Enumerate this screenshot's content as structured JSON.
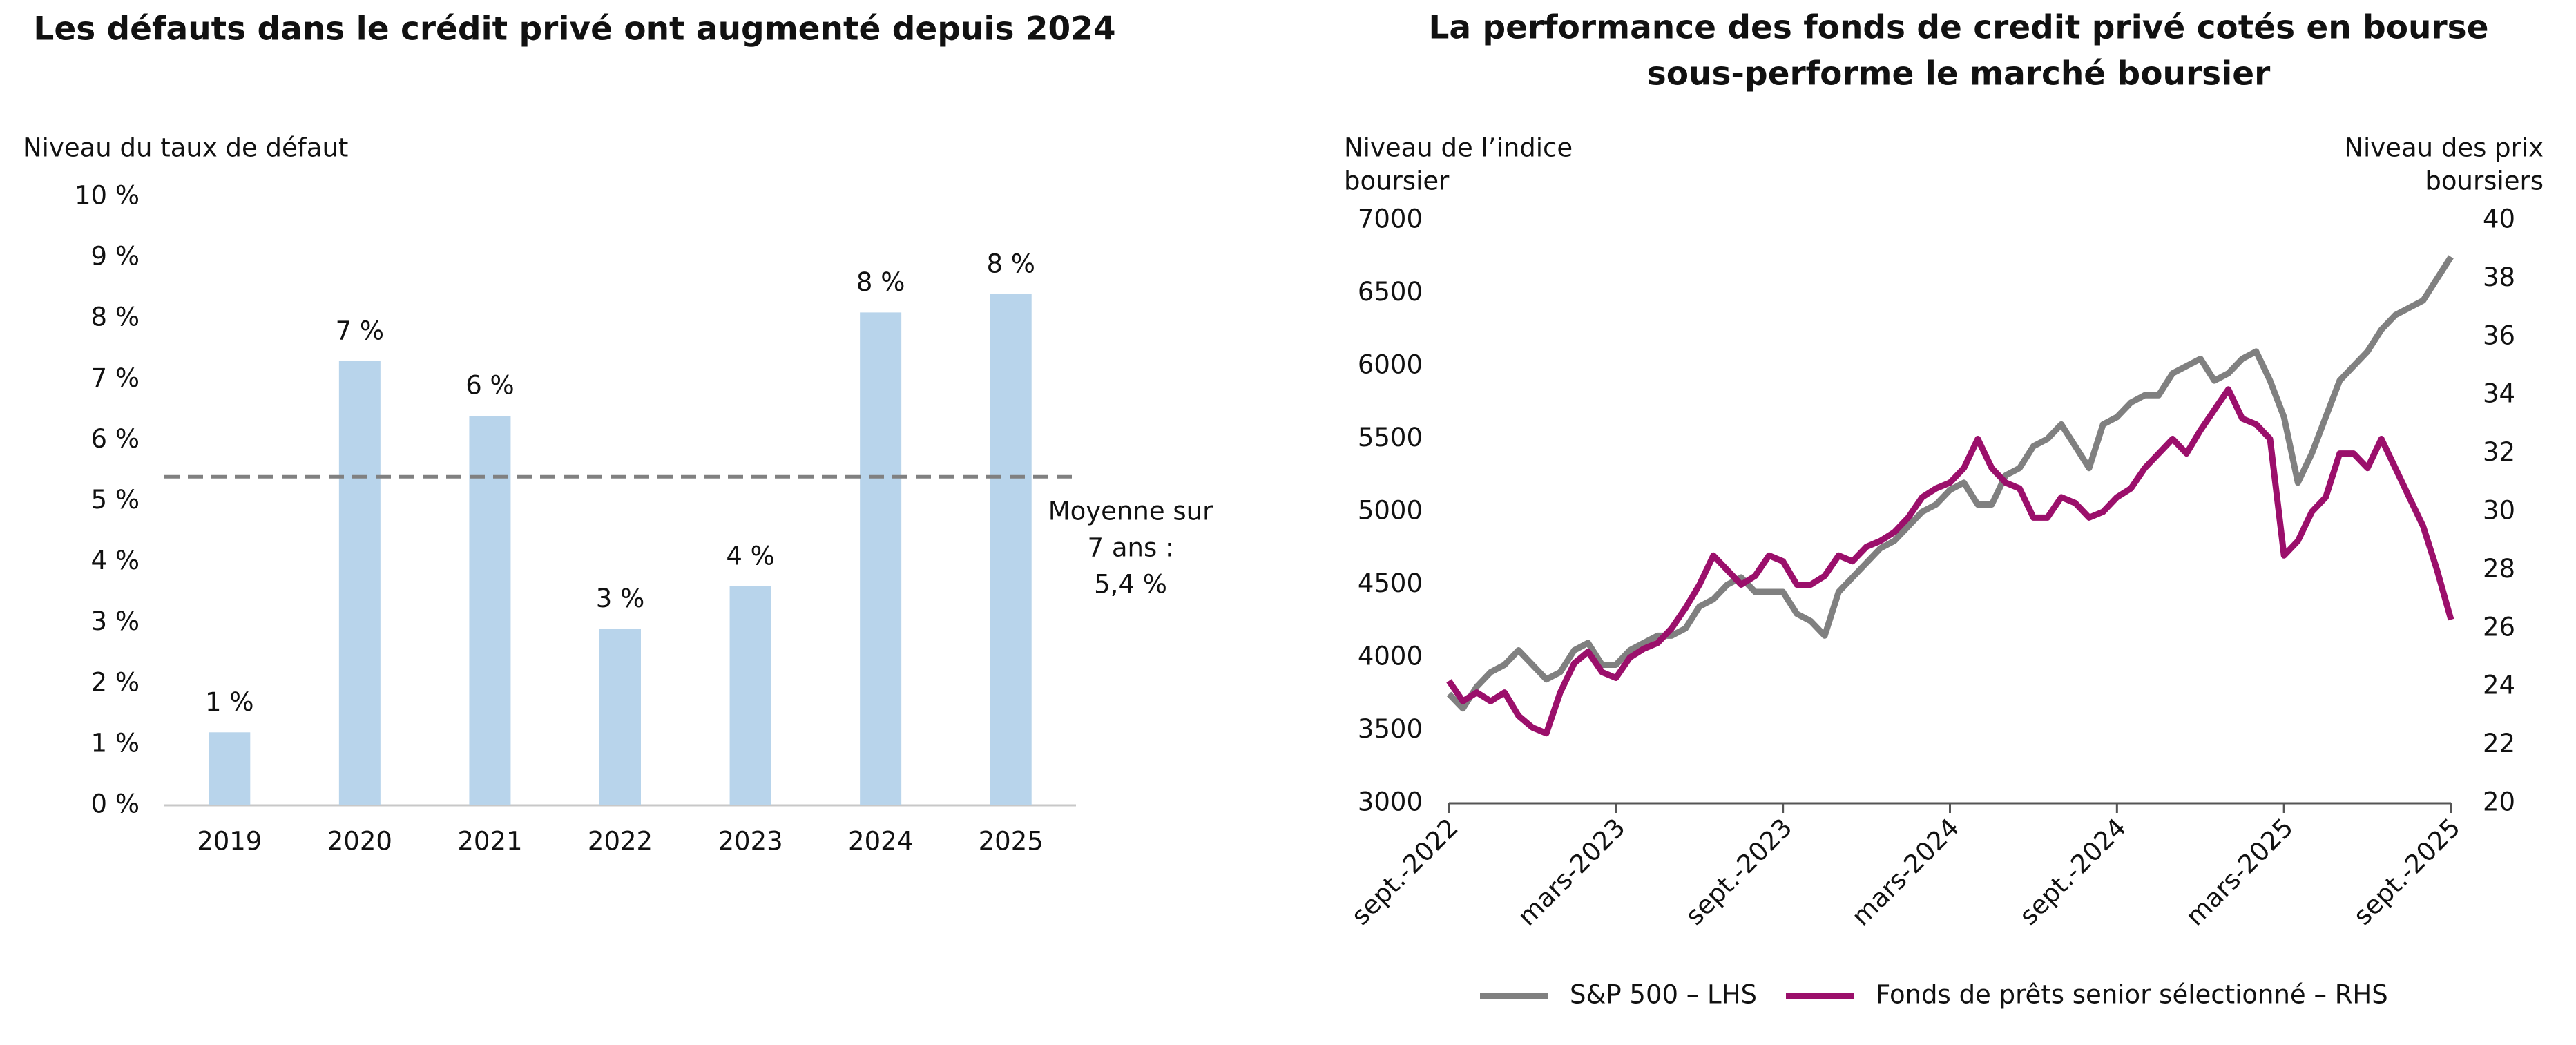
{
  "chart_data": [
    {
      "type": "bar",
      "title": "Les défauts dans le crédit privé ont augmenté depuis 2024",
      "y_label": "Niveau du taux de défaut",
      "categories": [
        "2019",
        "2020",
        "2021",
        "2022",
        "2023",
        "2024",
        "2025"
      ],
      "values": [
        1.2,
        7.3,
        6.4,
        2.9,
        3.6,
        8.1,
        8.4
      ],
      "value_labels": [
        "1 %",
        "7 %",
        "6 %",
        "3 %",
        "4 %",
        "8 %",
        "8 %"
      ],
      "color": "#b8d4eb",
      "ylim": [
        0,
        10
      ],
      "yticks": [
        {
          "value": 0,
          "label": "0 %"
        },
        {
          "value": 1,
          "label": "1 %"
        },
        {
          "value": 2,
          "label": "2 %"
        },
        {
          "value": 3,
          "label": "3 %"
        },
        {
          "value": 4,
          "label": "4 %"
        },
        {
          "value": 5,
          "label": "5 %"
        },
        {
          "value": 6,
          "label": "6 %"
        },
        {
          "value": 7,
          "label": "7 %"
        },
        {
          "value": 8,
          "label": "8 %"
        },
        {
          "value": 9,
          "label": "9 %"
        },
        {
          "value": 10,
          "label": "10 %"
        }
      ],
      "average": {
        "value": 5.4,
        "color": "#808080",
        "label_lines": [
          "Moyenne sur",
          "7 ans :",
          "5,4 %"
        ]
      }
    },
    {
      "type": "line",
      "title_lines": [
        "La performance des fonds de credit privé cotés en bourse",
        "sous-performe le marché boursier"
      ],
      "y_label_lines": [
        "Niveau de l’indice",
        "boursier"
      ],
      "y2_label_lines": [
        "Niveau des prix",
        "boursiers"
      ],
      "x": [
        0,
        0.5,
        1,
        1.5,
        2,
        2.5,
        3,
        3.5,
        4,
        4.5,
        5,
        5.5,
        6,
        6.5,
        7,
        7.5,
        8,
        8.5,
        9,
        9.5,
        10,
        10.5,
        11,
        11.5,
        12,
        12.5,
        13,
        13.5,
        14,
        14.5,
        15,
        15.5,
        16,
        16.5,
        17,
        17.5,
        18,
        18.5,
        19,
        19.5,
        20,
        20.5,
        21,
        21.5,
        22,
        22.5,
        23,
        23.5,
        24,
        24.5,
        25,
        25.5,
        26,
        26.5,
        27,
        27.5,
        28,
        28.5,
        29,
        29.5,
        30,
        30.5,
        31,
        31.5,
        32,
        32.5,
        33,
        33.5,
        34,
        34.5,
        35,
        35.5,
        36
      ],
      "xlim": [
        0,
        36
      ],
      "xticks": [
        {
          "value": 0,
          "label": "sept.-2022"
        },
        {
          "value": 6,
          "label": "mars-2023"
        },
        {
          "value": 12,
          "label": "sept.-2023"
        },
        {
          "value": 18,
          "label": "mars-2024"
        },
        {
          "value": 24,
          "label": "sept.-2024"
        },
        {
          "value": 30,
          "label": "mars-2025"
        },
        {
          "value": 36,
          "label": "sept.-2025"
        }
      ],
      "ylim": [
        3000,
        7000
      ],
      "yticks": [
        3000,
        3500,
        4000,
        4500,
        5000,
        5500,
        6000,
        6500,
        7000
      ],
      "y2lim": [
        20,
        40
      ],
      "y2ticks": [
        20,
        22,
        24,
        26,
        28,
        30,
        32,
        34,
        36,
        38,
        40
      ],
      "series": [
        {
          "name": "S&P 500 – LHS",
          "color": "#808080",
          "values": [
            3750,
            3650,
            3800,
            3900,
            3950,
            4050,
            3950,
            3850,
            3900,
            4050,
            4100,
            3950,
            3950,
            4050,
            4100,
            4150,
            4150,
            4200,
            4350,
            4400,
            4500,
            4550,
            4450,
            4450,
            4450,
            4300,
            4250,
            4150,
            4450,
            4550,
            4650,
            4750,
            4800,
            4900,
            5000,
            5050,
            5150,
            5200,
            5050,
            5050,
            5250,
            5300,
            5450,
            5500,
            5600,
            5450,
            5300,
            5600,
            5650,
            5750,
            5800,
            5800,
            5950,
            6000,
            6050,
            5900,
            5950,
            6050,
            6100,
            5900,
            5650,
            5200,
            5400,
            5650,
            5900,
            6000,
            6100,
            6250,
            6350,
            6400,
            6450,
            6600,
            6750
          ]
        },
        {
          "name": "Fonds de prêts senior sélectionné – RHS",
          "color": "#9b0f6b",
          "axis": "y2",
          "values": [
            24.2,
            23.5,
            23.8,
            23.5,
            23.8,
            23.0,
            22.6,
            22.4,
            23.8,
            24.8,
            25.2,
            24.5,
            24.3,
            25.0,
            25.3,
            25.5,
            26.0,
            26.7,
            27.5,
            28.5,
            28.0,
            27.5,
            27.8,
            28.5,
            28.3,
            27.5,
            27.5,
            27.8,
            28.5,
            28.3,
            28.8,
            29.0,
            29.3,
            29.8,
            30.5,
            30.8,
            31.0,
            31.5,
            32.5,
            31.5,
            31.0,
            30.8,
            29.8,
            29.8,
            30.5,
            30.3,
            29.8,
            30.0,
            30.5,
            30.8,
            31.5,
            32.0,
            32.5,
            32.0,
            32.8,
            33.5,
            34.2,
            33.2,
            33.0,
            32.5,
            28.5,
            29.0,
            30.0,
            30.5,
            32.0,
            32.0,
            31.5,
            32.5,
            31.5,
            30.5,
            29.5,
            28.0,
            26.3
          ]
        }
      ]
    }
  ]
}
